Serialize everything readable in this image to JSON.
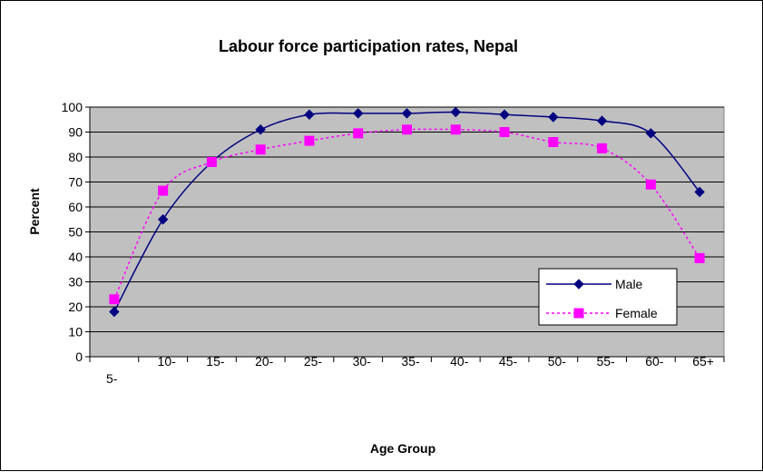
{
  "chart_data": {
    "type": "line",
    "title": "Labour force participation rates, Nepal",
    "xlabel": "Age Group",
    "ylabel": "Percent",
    "categories": [
      "5-",
      "10-",
      "15-",
      "20-",
      "25-",
      "30-",
      "35-",
      "40-",
      "45-",
      "50-",
      "55-",
      "60-",
      "65+"
    ],
    "ylim": [
      0,
      100
    ],
    "yticks": [
      0,
      10,
      20,
      30,
      40,
      50,
      60,
      70,
      80,
      90,
      100
    ],
    "grid": true,
    "legend_position": "lower-right",
    "series": [
      {
        "name": "Male",
        "values": [
          18,
          55,
          78,
          91,
          97,
          97.5,
          97.5,
          98,
          97,
          96,
          94.5,
          89.5,
          66
        ],
        "color": "#000080",
        "marker": "diamond",
        "line_style": "solid"
      },
      {
        "name": "Female",
        "values": [
          23,
          66.5,
          78,
          83,
          86.5,
          89.5,
          91,
          91,
          90,
          86,
          83.5,
          69,
          39.5
        ],
        "color": "#ff00ff",
        "marker": "square",
        "line_style": "dashed"
      }
    ],
    "plot_background": "#c0c0c0"
  }
}
